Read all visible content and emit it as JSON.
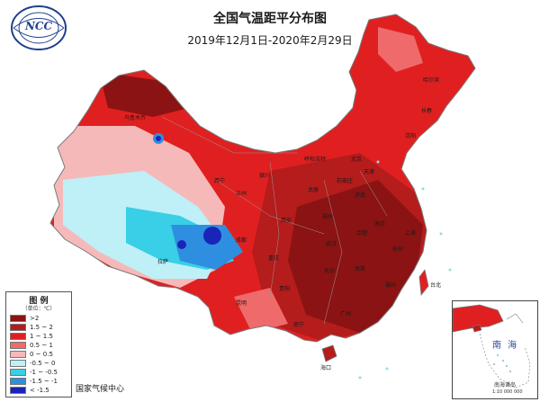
{
  "title": "全国气温距平分布图",
  "subtitle": "2019年12月1日-2020年2月29日",
  "logo": {
    "text": "NCC"
  },
  "legend": {
    "title": "图 例",
    "unit": "（单位：℃）",
    "items": [
      {
        "label": ">2",
        "color": "#8b1313"
      },
      {
        "label": "1.5 ~ 2",
        "color": "#b51c1c"
      },
      {
        "label": "1 ~ 1.5",
        "color": "#e02020"
      },
      {
        "label": "0.5 ~ 1",
        "color": "#ef6a6a"
      },
      {
        "label": "0 ~ 0.5",
        "color": "#f6b9b9"
      },
      {
        "label": "-0.5 ~ 0",
        "color": "#bfeff7"
      },
      {
        "label": "-1 ~ -0.5",
        "color": "#39cfe6"
      },
      {
        "label": "-1.5 ~ -1",
        "color": "#2e8fe0"
      },
      {
        "label": "< -1.5",
        "color": "#1a24b8"
      }
    ]
  },
  "source": "国家气候中心",
  "inset": {
    "name": "南 海",
    "islands": "南海诸岛",
    "scale": "1:10 000 000"
  },
  "cities": [
    "乌鲁木齐",
    "拉萨",
    "西宁",
    "兰州",
    "银川",
    "呼和浩特",
    "北京",
    "天津",
    "石家庄",
    "太原",
    "济南",
    "郑州",
    "西安",
    "成都",
    "重庆",
    "武汉",
    "合肥",
    "南京",
    "上海",
    "杭州",
    "长沙",
    "南昌",
    "福州",
    "贵阳",
    "昆明",
    "南宁",
    "广州",
    "海口",
    "沈阳",
    "长春",
    "哈尔滨",
    "台北"
  ],
  "colors": {
    "outline": "#7a7a7a",
    "sea_dot": "#9fd8e8"
  }
}
